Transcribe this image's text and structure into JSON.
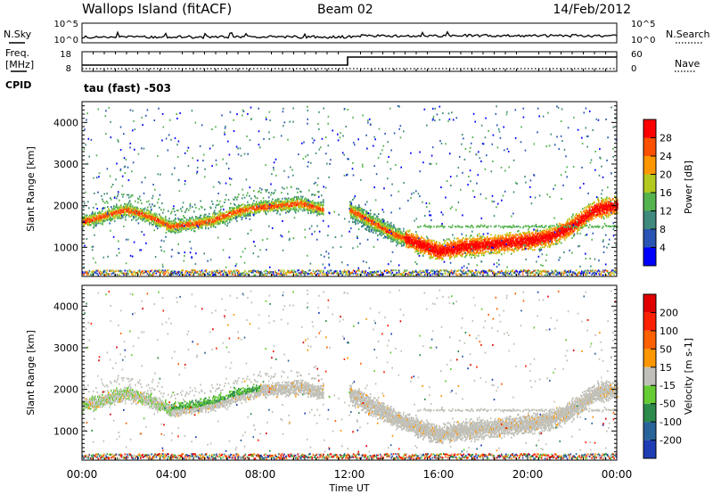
{
  "header": {
    "site": "Wallops Island (fitACF)",
    "beam": "Beam 02",
    "date": "14/Feb/2012"
  },
  "strip": {
    "nsky_label": "N.Sky",
    "nsearch_label": "N.Search",
    "freq_label": "Freq.",
    "freq_unit": "[MHz]",
    "nave_label": "Nave",
    "cpid_label": "CPID",
    "cpid_value": "tau (fast) -503",
    "noise_tick_top": "10^5",
    "noise_tick_bottom": "10^0",
    "freq_tick_top": "18",
    "freq_tick_bottom": "8",
    "nave_tick_top": "60",
    "nave_tick_bottom": "0"
  },
  "chart_data": [
    {
      "type": "heatmap",
      "name": "power",
      "ylabel": "Slant Range [km]",
      "yticks": [
        "1000",
        "2000",
        "3000",
        "4000"
      ],
      "ylim": [
        300,
        4500
      ],
      "xlim_hours": [
        0,
        24
      ],
      "colorbar": {
        "label": "Power [dB]",
        "ticks": [
          "4",
          "8",
          "12",
          "16",
          "20",
          "24",
          "28"
        ],
        "colors": [
          "#0000ff",
          "#2a55b4",
          "#3f8a7c",
          "#55b34e",
          "#b4c81e",
          "#ff9600",
          "#ff5000",
          "#ff0000"
        ]
      },
      "echo_bands": [
        {
          "name": "early",
          "start_h": 0,
          "end_h": 10.8,
          "center_km": [
            1600,
            1750,
            1900,
            1750,
            1500,
            1550,
            1650,
            1850,
            1950,
            2000,
            2050,
            1900
          ]
        },
        {
          "name": "evening",
          "start_h": 12,
          "end_h": 24,
          "center_km": [
            1900,
            1600,
            1300,
            1100,
            900,
            1000,
            1050,
            1100,
            1150,
            1250,
            1500,
            1900,
            2000
          ]
        }
      ]
    },
    {
      "type": "heatmap",
      "name": "velocity",
      "ylabel": "Slant Range [km]",
      "yticks": [
        "1000",
        "2000",
        "3000",
        "4000"
      ],
      "ylim": [
        300,
        4500
      ],
      "xlim_hours": [
        0,
        24
      ],
      "colorbar": {
        "label": "Velocity [m s-1]",
        "ticks": [
          "200",
          "100",
          "50",
          "15",
          "-15",
          "-50",
          "-100",
          "-200"
        ],
        "colors": [
          "#1e3cb4",
          "#28649a",
          "#2c8a4a",
          "#66cc33",
          "#c8c8c0",
          "#ff9600",
          "#ff6000",
          "#ff2000",
          "#e00000"
        ]
      }
    }
  ],
  "xaxis": {
    "ticks": [
      "00:00",
      "04:00",
      "08:00",
      "12:00",
      "16:00",
      "20:00",
      "00:00"
    ],
    "label": "Time UT"
  },
  "colors": {
    "power_scale": [
      "#0000ff",
      "#2a55b4",
      "#3f8a7c",
      "#55b34e",
      "#b4c81e",
      "#ff9600",
      "#ff5000",
      "#ff0000"
    ],
    "velocity_scale": [
      "#1e3cb4",
      "#28649a",
      "#2c8a4a",
      "#66cc33",
      "#c8c8c0",
      "#ff9600",
      "#ff6000",
      "#ff2000",
      "#e00000"
    ],
    "ground_scatter": "#c0c0b8"
  }
}
